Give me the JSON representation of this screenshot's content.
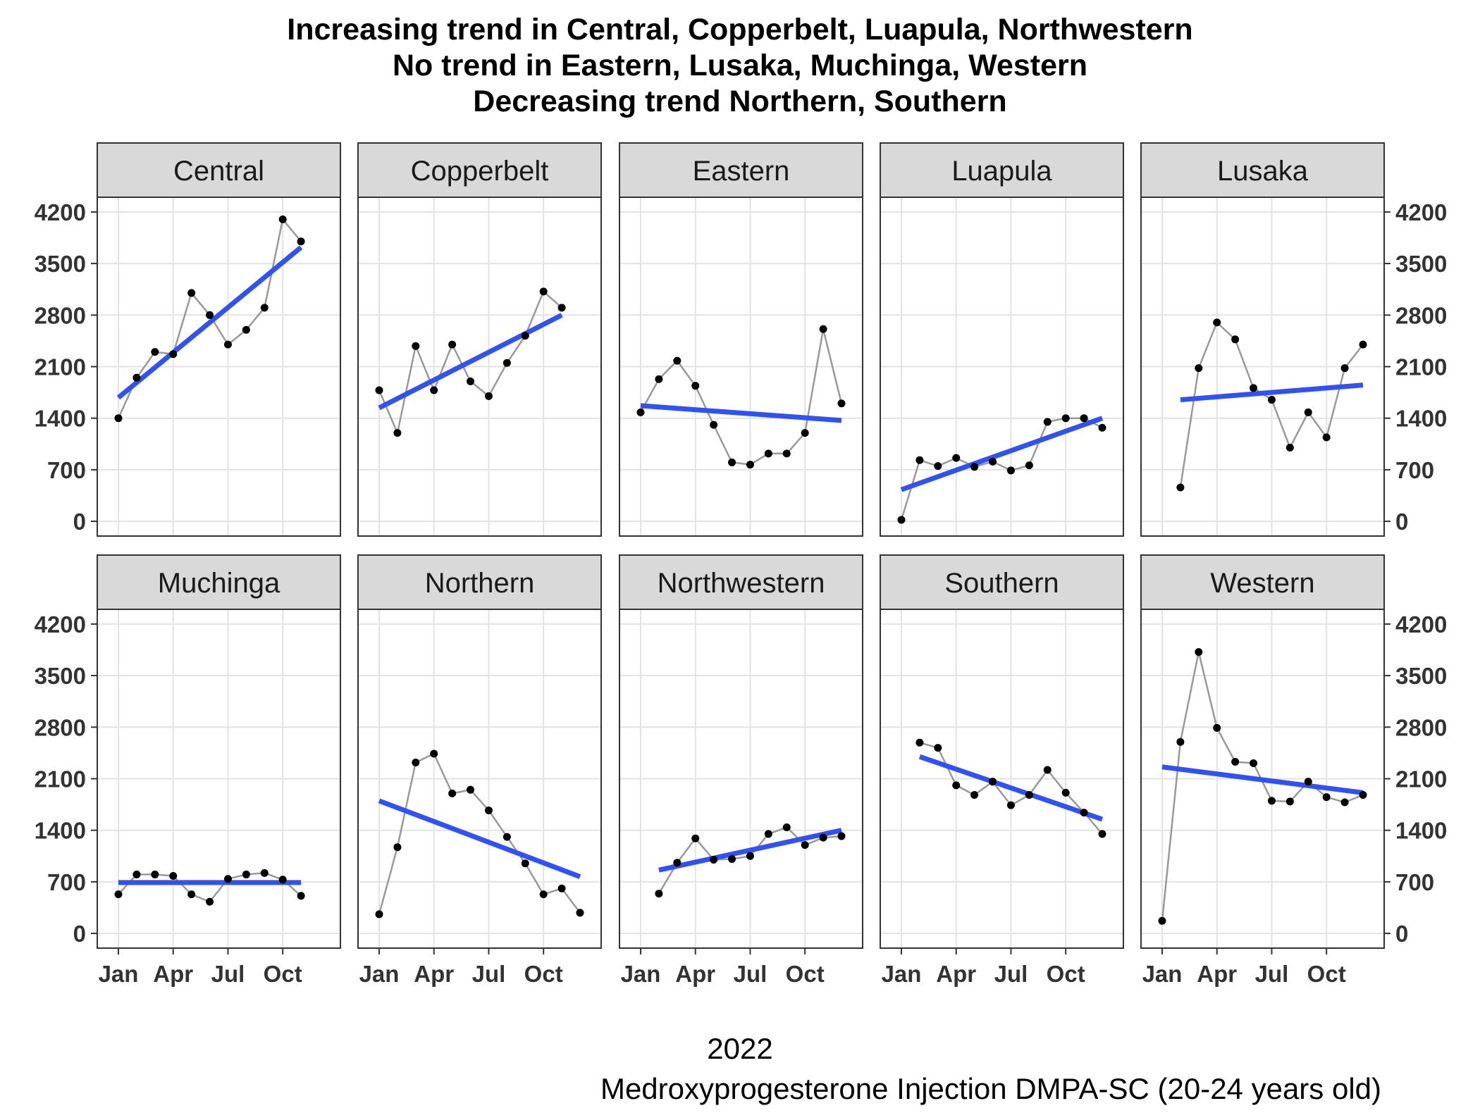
{
  "chart_data": {
    "type": "line",
    "title_lines": [
      "Increasing trend in Central, Copperbelt, Luapula, Northwestern",
      "No trend in Eastern, Lusaka, Muchinga, Western",
      "Decreasing trend Northern, Southern"
    ],
    "xlabel": "2022",
    "caption": "Medroxyprogesterone Injection DMPA-SC (20-24 years old)",
    "x": [
      "Jan",
      "Feb",
      "Mar",
      "Apr",
      "May",
      "Jun",
      "Jul",
      "Aug",
      "Sep",
      "Oct",
      "Nov",
      "Dec"
    ],
    "x_ticks": [
      "Jan",
      "Apr",
      "Jul",
      "Oct"
    ],
    "y_ticks": [
      0,
      700,
      1400,
      2100,
      2800,
      3500,
      4200
    ],
    "ylim": [
      -200,
      4400
    ],
    "grid": true,
    "colors": {
      "data_line": "#999999",
      "points": "#000000",
      "trend": "#3050f8",
      "strip": "#d9d9d9"
    },
    "panels": [
      {
        "name": "Central",
        "values": [
          1400,
          1950,
          2300,
          2270,
          3100,
          2800,
          2400,
          2600,
          2900,
          4100,
          3800,
          null
        ],
        "trend": [
          1680,
          3720
        ]
      },
      {
        "name": "Copperbelt",
        "values": [
          1780,
          1200,
          2380,
          1780,
          2400,
          1900,
          1700,
          2150,
          2520,
          3120,
          2900,
          null
        ],
        "trend": [
          1540,
          2800
        ]
      },
      {
        "name": "Eastern",
        "values": [
          1480,
          1930,
          2180,
          1840,
          1310,
          800,
          770,
          920,
          920,
          1200,
          2610,
          1600
        ],
        "trend": [
          1570,
          1370
        ]
      },
      {
        "name": "Luapula",
        "values": [
          20,
          830,
          750,
          860,
          740,
          810,
          690,
          760,
          1350,
          1400,
          1400,
          1270
        ],
        "trend": [
          430,
          1400
        ]
      },
      {
        "name": "Lusaka",
        "values": [
          null,
          460,
          2080,
          2700,
          2470,
          1810,
          1650,
          1000,
          1480,
          1140,
          2080,
          2400
        ],
        "trend": [
          1650,
          1850
        ]
      },
      {
        "name": "Muchinga",
        "values": [
          530,
          800,
          800,
          780,
          530,
          430,
          740,
          800,
          820,
          730,
          510,
          null
        ],
        "trend": [
          690,
          690
        ]
      },
      {
        "name": "Northern",
        "values": [
          260,
          1170,
          2320,
          2440,
          1900,
          1950,
          1670,
          1310,
          950,
          530,
          610,
          280
        ],
        "trend": [
          1800,
          770
        ]
      },
      {
        "name": "Northwestern",
        "values": [
          null,
          540,
          960,
          1290,
          1000,
          1010,
          1050,
          1350,
          1440,
          1200,
          1300,
          1320
        ],
        "trend": [
          860,
          1400
        ]
      },
      {
        "name": "Southern",
        "values": [
          null,
          2590,
          2520,
          2010,
          1880,
          2060,
          1740,
          1880,
          2220,
          1910,
          1640,
          1350
        ],
        "trend": [
          2400,
          1550
        ]
      },
      {
        "name": "Western",
        "values": [
          170,
          2600,
          3820,
          2790,
          2330,
          2310,
          1800,
          1790,
          2060,
          1850,
          1780,
          1880
        ],
        "trend": [
          2260,
          1910
        ]
      }
    ]
  }
}
